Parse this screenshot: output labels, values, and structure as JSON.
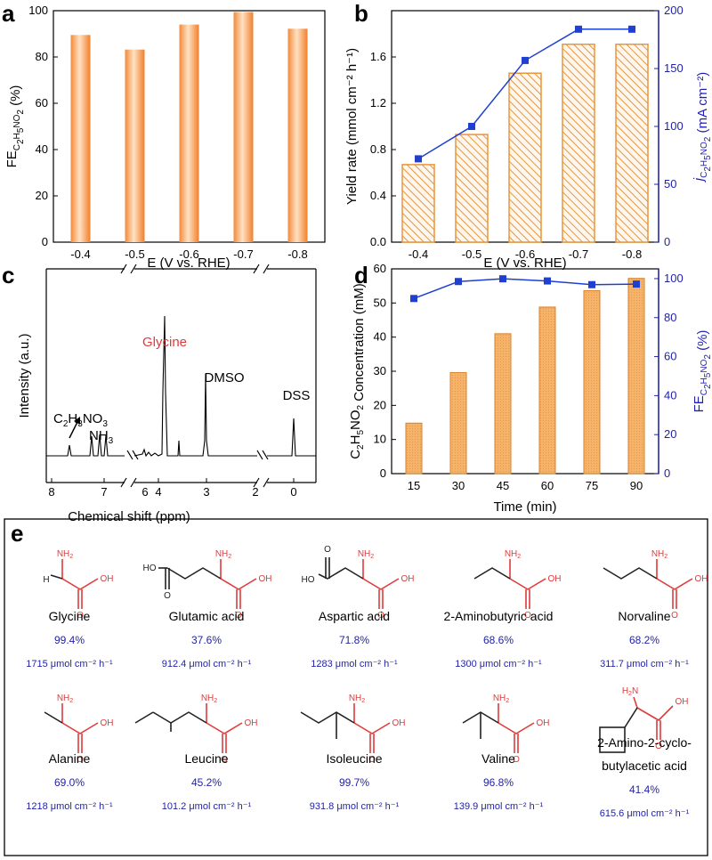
{
  "panel_labels": [
    "a",
    "b",
    "c",
    "d",
    "e"
  ],
  "chart_data": [
    {
      "panel": "a",
      "type": "bar",
      "categories": [
        "-0.4",
        "-0.5",
        "-0.6",
        "-0.7",
        "-0.8"
      ],
      "values": [
        89.5,
        83.2,
        94.0,
        99.4,
        92.2
      ],
      "ylim": [
        0,
        100
      ],
      "yticks": [
        "0",
        "20",
        "40",
        "60",
        "80",
        "100"
      ],
      "xlabel": "E (V vs. RHE)",
      "ylabel": "FE",
      "ylabel_sub": "C2H5NO2",
      "ylabel_unit": "(%)",
      "bar_color": "#f0a058"
    },
    {
      "panel": "b",
      "type": "bar+line",
      "categories": [
        "-0.4",
        "-0.5",
        "-0.6",
        "-0.7",
        "-0.8"
      ],
      "bar_values": [
        0.67,
        0.93,
        1.46,
        1.71,
        1.71
      ],
      "line_values": [
        72,
        100,
        157,
        184,
        184
      ],
      "ylim": [
        0,
        2.0
      ],
      "yticks": [
        "0.0",
        "0.4",
        "0.8",
        "1.2",
        "1.6"
      ],
      "y2lim": [
        0,
        200
      ],
      "y2ticks": [
        "0",
        "50",
        "100",
        "150",
        "200"
      ],
      "xlabel": "E (V vs. RHE)",
      "ylabel": "Yield rate (mmol cm⁻² h⁻¹)",
      "y2label": "j",
      "y2label_sub": "C2H5NO2",
      "y2label_unit": "(mA cm⁻²)",
      "bar_color": "#e8953a",
      "line_color": "#1f3fd0"
    },
    {
      "panel": "c",
      "type": "spectrum",
      "xticks": [
        "8",
        "7",
        "6",
        "4",
        "3",
        "2",
        "0"
      ],
      "xlabel": "Chemical shift (ppm)",
      "ylabel": "Intensity (a.u.)",
      "peaks": [
        "Glycine",
        "DMSO",
        "DSS",
        "C2H3NO3",
        "NH3"
      ]
    },
    {
      "panel": "d",
      "type": "bar+line",
      "categories": [
        "15",
        "30",
        "45",
        "60",
        "75",
        "90"
      ],
      "bar_values": [
        14.8,
        29.6,
        41.0,
        48.8,
        53.6,
        57.2
      ],
      "line_values": [
        89.8,
        98.5,
        99.9,
        98.8,
        96.9,
        97.2
      ],
      "ylim": [
        0,
        60
      ],
      "yticks": [
        "0",
        "10",
        "20",
        "30",
        "40",
        "50",
        "60"
      ],
      "y2lim": [
        0,
        105
      ],
      "y2ticks": [
        "0",
        "20",
        "40",
        "60",
        "80",
        "100"
      ],
      "xlabel": "Time (min)",
      "ylabel": "Concentration (mM)",
      "ylabel_prefix": "C2H5NO2",
      "y2label": "FE",
      "y2label_sub": "C2H5NO2",
      "y2label_unit": "(%)",
      "bar_color": "#f5b46a",
      "line_color": "#1f3fd0"
    }
  ],
  "amino_acids": [
    {
      "name": "Glycine",
      "fe": "99.4%",
      "rate": "1715 μmol cm⁻² h⁻¹"
    },
    {
      "name": "Glutamic acid",
      "fe": "37.6%",
      "rate": "912.4 μmol cm⁻² h⁻¹"
    },
    {
      "name": "Aspartic acid",
      "fe": "71.8%",
      "rate": "1283 μmol cm⁻² h⁻¹"
    },
    {
      "name": "2-Aminobutyric acid",
      "fe": "68.6%",
      "rate": "1300 μmol cm⁻² h⁻¹"
    },
    {
      "name": "Norvaline",
      "fe": "68.2%",
      "rate": "311.7 μmol cm⁻² h⁻¹"
    },
    {
      "name": "Alanine",
      "fe": "69.0%",
      "rate": "1218 μmol cm⁻² h⁻¹"
    },
    {
      "name": "Leucine",
      "fe": "45.2%",
      "rate": "101.2 μmol cm⁻² h⁻¹"
    },
    {
      "name": "Isoleucine",
      "fe": "99.7%",
      "rate": "931.8 μmol cm⁻² h⁻¹"
    },
    {
      "name": "Valine",
      "fe": "96.8%",
      "rate": "139.9 μmol cm⁻² h⁻¹"
    },
    {
      "name": "2-Amino-2-cyclo-",
      "name2": "butylacetic acid",
      "fe": "41.4%",
      "rate": "615.6 μmol cm⁻² h⁻¹"
    }
  ],
  "atoms": {
    "nh2": "NH",
    "nh2_sub": "2",
    "h2n": "H",
    "h2n_rest": "N",
    "oh": "OH",
    "ho": "HO",
    "o": "O",
    "h": "H"
  }
}
